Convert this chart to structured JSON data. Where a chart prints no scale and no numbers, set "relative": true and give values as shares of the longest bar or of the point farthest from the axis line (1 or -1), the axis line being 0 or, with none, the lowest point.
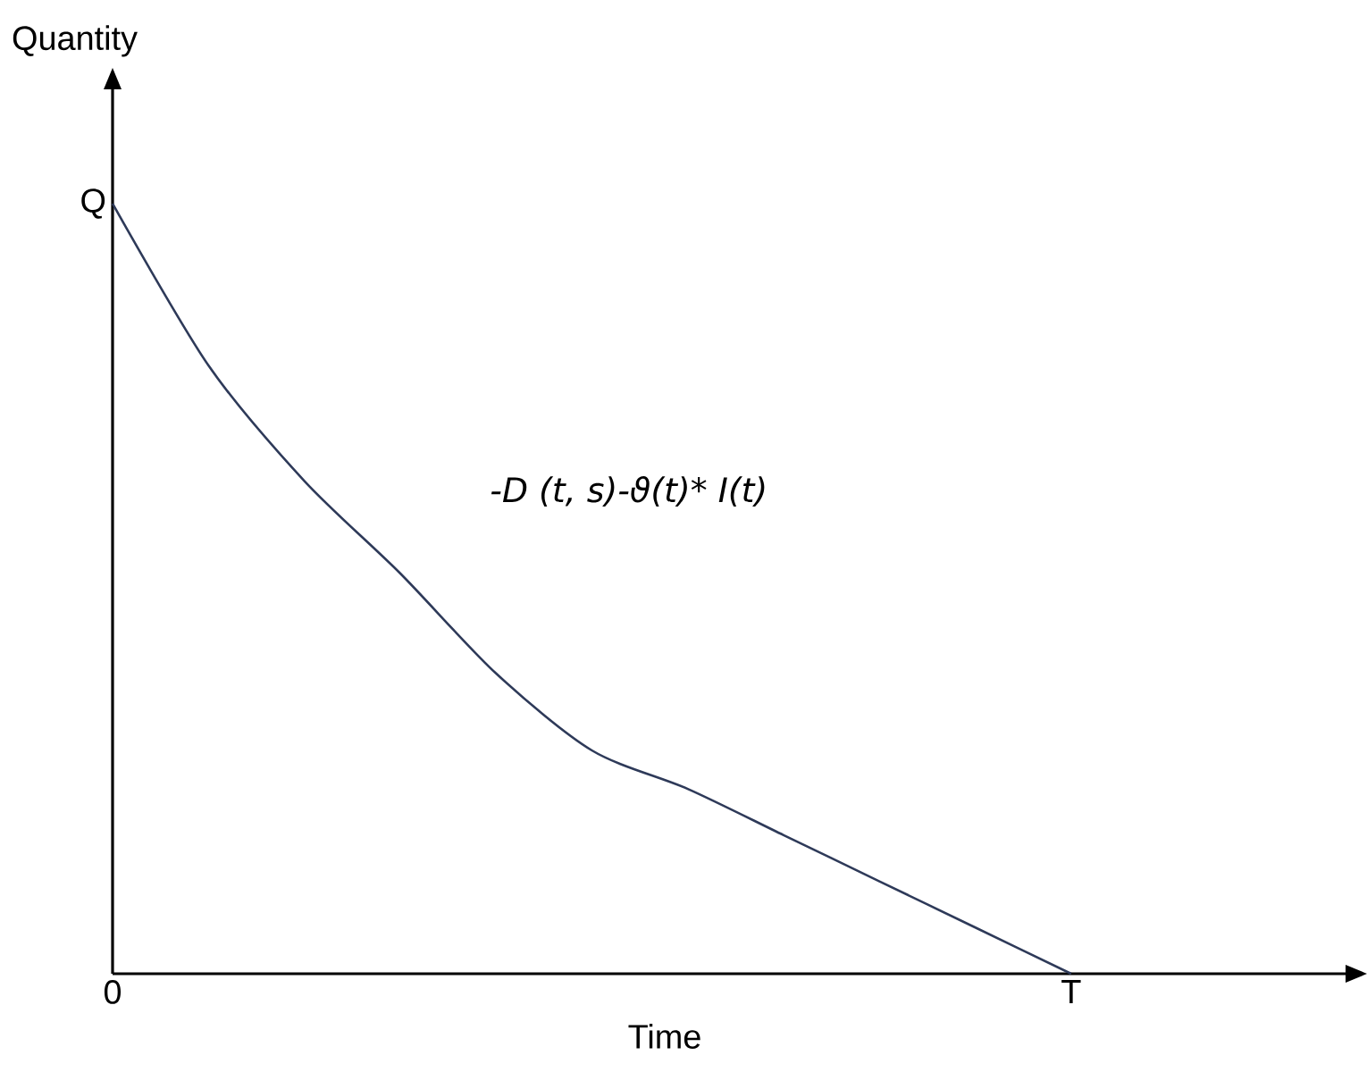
{
  "chart_data": {
    "type": "line",
    "relative": true,
    "xlabel": "Time",
    "ylabel": "Quantity",
    "categories": [
      null,
      null,
      null,
      null,
      null,
      null,
      null,
      null,
      null,
      null,
      null,
      null,
      null
    ],
    "series": [
      {
        "color": "#2e3a59",
        "values": [
          1,
          0.79,
          0.64,
          0.52,
          0.39,
          0.29,
          0.24,
          0.18,
          0.12,
          0.06,
          0,
          null,
          null
        ]
      }
    ],
    "annotations": [
      "Q",
      "-D (t, s)-ϑ(t)* I(t)",
      "0",
      "T"
    ],
    "marker": "none",
    "line_style": "solid"
  }
}
